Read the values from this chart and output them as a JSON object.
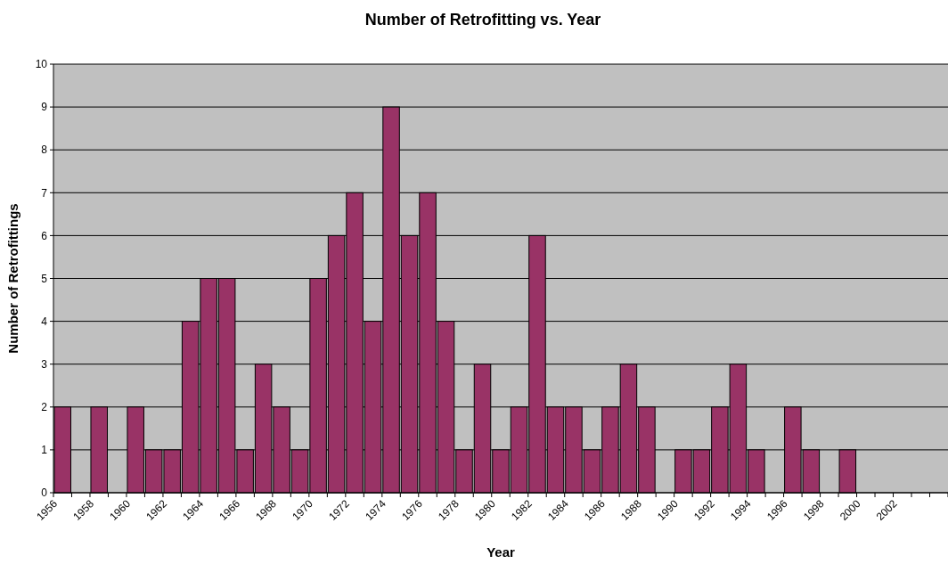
{
  "chart_data": {
    "type": "bar",
    "title": "Number of Retrofitting vs. Year",
    "xlabel": "Year",
    "ylabel": "Number of Retrofittings",
    "categories": [
      "1956",
      null,
      "1958",
      null,
      "1960",
      null,
      "1962",
      null,
      "1964",
      null,
      "1966",
      null,
      "1968",
      null,
      "1970",
      null,
      "1972",
      null,
      "1974",
      null,
      "1976",
      null,
      "1978",
      null,
      "1980",
      null,
      "1982",
      null,
      "1984",
      null,
      "1986",
      null,
      "1988",
      null,
      "1990",
      null,
      "1992",
      null,
      "1994",
      null,
      "1996",
      null,
      "1998",
      null,
      "2000",
      null,
      "2002",
      null,
      null
    ],
    "values": [
      2,
      0,
      2,
      0,
      2,
      1,
      1,
      4,
      5,
      5,
      1,
      3,
      2,
      1,
      5,
      6,
      7,
      4,
      9,
      6,
      7,
      4,
      1,
      3,
      1,
      2,
      6,
      2,
      2,
      1,
      2,
      3,
      2,
      0,
      1,
      1,
      2,
      3,
      1,
      0,
      2,
      1,
      0,
      1,
      0,
      0,
      0,
      0,
      0
    ],
    "color": "#993366",
    "ylim": [
      0,
      10
    ],
    "yticks": [
      0,
      1,
      2,
      3,
      4,
      5,
      6,
      7,
      8,
      9,
      10
    ],
    "grid": "y"
  }
}
